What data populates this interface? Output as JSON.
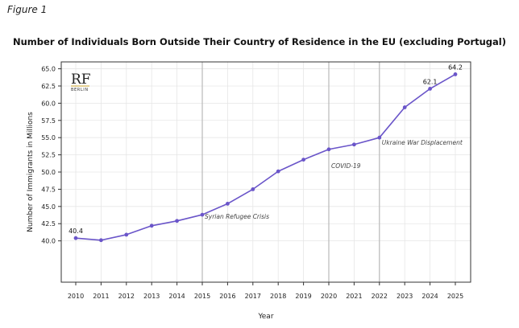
{
  "figure_label": "Figure 1",
  "logo": {
    "main": "RF",
    "sub": "BERLIN"
  },
  "colors": {
    "line": "#6a55c9",
    "event_line": "#b9b9b9",
    "grid": "#e6e6e6",
    "logo_rule": "#c9a227"
  },
  "chart_data": {
    "type": "line",
    "title": "Number of Individuals Born Outside Their Country of Residence in the EU (excluding Portugal)",
    "xlabel": "Year",
    "ylabel": "Number of Immigrants in Millions",
    "x": [
      2010,
      2011,
      2012,
      2013,
      2014,
      2015,
      2016,
      2017,
      2018,
      2019,
      2020,
      2021,
      2022,
      2023,
      2024,
      2025
    ],
    "values": [
      40.4,
      40.1,
      40.9,
      42.2,
      42.9,
      43.8,
      45.4,
      47.5,
      50.1,
      51.8,
      53.3,
      54.0,
      55.0,
      59.4,
      62.1,
      64.2
    ],
    "ylim": [
      34.0,
      66.0
    ],
    "yticks": [
      40.0,
      42.5,
      45.0,
      47.5,
      50.0,
      52.5,
      55.0,
      57.5,
      60.0,
      62.5,
      65.0
    ],
    "ytick_labels": [
      "40.0",
      "42.5",
      "45.0",
      "47.5",
      "50.0",
      "52.5",
      "55.0",
      "57.5",
      "60.0",
      "62.5",
      "65.0"
    ],
    "xtick_labels": [
      "2010",
      "2011",
      "2012",
      "2013",
      "2014",
      "2015",
      "2016",
      "2017",
      "2018",
      "2019",
      "2020",
      "2021",
      "2022",
      "2023",
      "2024",
      "2025"
    ],
    "grid": true,
    "data_labels": [
      {
        "x": 2010,
        "text": "40.4"
      },
      {
        "x": 2024,
        "text": "62.1"
      },
      {
        "x": 2025,
        "text": "64.2"
      }
    ],
    "events": [
      {
        "x": 2015,
        "label": "Syrian Refugee Crisis",
        "label_y": 43.2
      },
      {
        "x": 2020,
        "label": "COVID-19",
        "label_y": 50.6
      },
      {
        "x": 2022,
        "label": "Ukraine War Displacement",
        "label_y": 54.0
      }
    ]
  }
}
